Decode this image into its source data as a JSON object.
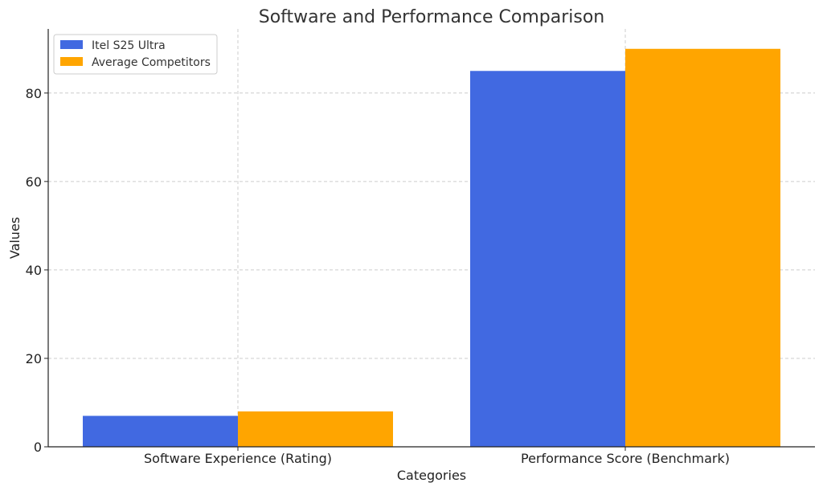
{
  "chart_data": {
    "type": "bar",
    "title": "Software and Performance Comparison",
    "xlabel": "Categories",
    "ylabel": "Values",
    "categories": [
      "Software Experience (Rating)",
      "Performance Score (Benchmark)"
    ],
    "series": [
      {
        "name": "Itel S25 Ultra",
        "values": [
          7,
          85
        ],
        "color": "#4169e1"
      },
      {
        "name": "Average Competitors",
        "values": [
          8,
          90
        ],
        "color": "#ffa500"
      }
    ],
    "ylim": [
      0,
      94.5
    ],
    "yticks": [
      0,
      20,
      40,
      60,
      80
    ],
    "grid": true,
    "legend_position": "top-left"
  }
}
